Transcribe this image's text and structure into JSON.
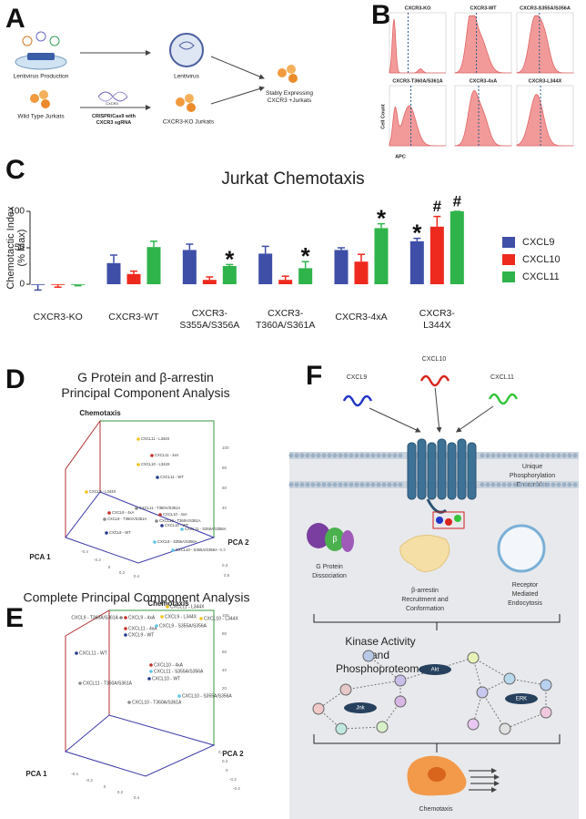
{
  "letters": [
    "A",
    "B",
    "C",
    "D",
    "E",
    "F"
  ],
  "panel_a": {
    "lentivirus_production": "Lentivirus Production",
    "wild_type": "Wild Type Jurkats",
    "lentivirus": "Lentivirus",
    "crispr": "CRISPR/Cas9 with\nCXCR3 sgRNA",
    "gene": "CXCR3",
    "knockout": "CXCR3-KO Jurkats",
    "stable": "Stably Expressing\nCXCR3 +Jurkats"
  },
  "panel_b": {
    "titles": [
      "CXCR3-KO",
      "CXCR3-WT",
      "CXCR3-S355A/S356A",
      "CXCR3-T360A/S361A",
      "CXCR3-4xA",
      "CXCR3-L344X"
    ],
    "y_label": "Cell Count",
    "x_label": "APC"
  },
  "chart_data": {
    "type": "bar",
    "title": "Jurkat Chemotaxis",
    "y_label": "Chemotactic Index\n(% Max)",
    "categories": [
      "CXCR3-KO",
      "CXCR3-WT",
      "CXCR3-\nS355A/S356A",
      "CXCR3-\nT360A/S361A",
      "CXCR3-4xA",
      "CXCR3-\nL344X"
    ],
    "series": [
      {
        "name": "CXCL9",
        "color": "#3f4fa8",
        "values": [
          -1,
          29,
          47,
          42,
          47,
          59
        ],
        "errors": [
          7,
          11,
          8,
          10,
          3,
          4
        ]
      },
      {
        "name": "CXCL10",
        "color": "#ee2a1e",
        "values": [
          -1,
          14,
          6,
          6,
          31,
          79
        ],
        "errors": [
          3,
          4,
          4,
          5,
          10,
          14
        ]
      },
      {
        "name": "CXCL11",
        "color": "#2fb44b",
        "values": [
          -1,
          51,
          25,
          22,
          77,
          100
        ],
        "errors": [
          1,
          8,
          2,
          9,
          6,
          0
        ]
      }
    ],
    "annotations": [
      {
        "text": "*",
        "category": "CXCR3-\nS355A/S356A",
        "series": "CXCL11"
      },
      {
        "text": "*",
        "category": "CXCR3-\nT360A/S361A",
        "series": "CXCL11"
      },
      {
        "text": "*",
        "category": "CXCR3-4xA",
        "series": "CXCL11"
      },
      {
        "text": "*",
        "category": "CXCR3-\nL344X",
        "series": "CXCL9"
      },
      {
        "text": "#",
        "category": "CXCR3-\nL344X",
        "series": "CXCL10"
      },
      {
        "text": "#",
        "category": "CXCR3-\nL344X",
        "series": "CXCL11"
      }
    ],
    "ylim": [
      -15,
      110
    ],
    "yticks": [
      0,
      50,
      100
    ],
    "grid": false,
    "legend": "right"
  },
  "panel_d": {
    "title": "G Protein and β-arrestin\nPrincipal Component Analysis",
    "axis_z": "Chemotaxis",
    "axis_x": "PCA 1",
    "axis_y": "PCA 2",
    "z_ticks": [
      "100",
      "80",
      "60",
      "40"
    ],
    "y_ticks": [
      "-0.3",
      "0.3",
      "0.6"
    ],
    "x_ticks": [
      "-0.4",
      "-0.2",
      "0",
      "0.2",
      "0.4"
    ],
    "points": [
      {
        "label": "CXCL11 - L344X",
        "color": "#f2c318"
      },
      {
        "label": "CXCL11 - 4xA",
        "color": "#c0302a"
      },
      {
        "label": "CXCL10 - L344X",
        "color": "#f2c318"
      },
      {
        "label": "CXCL11 - WT",
        "color": "#263a8c"
      },
      {
        "label": "CXCL9 - L344X",
        "color": "#f2c318"
      },
      {
        "label": "CXCL11 - T360A/S361A",
        "color": "#8a8a8a"
      },
      {
        "label": "CXCL9 - 4xA",
        "color": "#c0302a"
      },
      {
        "label": "CXCL10 - 4xA",
        "color": "#c0302a"
      },
      {
        "label": "CXCL9 - T360A/S361A",
        "color": "#8a8a8a"
      },
      {
        "label": "CXCL10 - T360A/S361A",
        "color": "#8a8a8a"
      },
      {
        "label": "CXCL10 - WT",
        "color": "#263a8c"
      },
      {
        "label": "CXCL9 - WT",
        "color": "#263a8c"
      },
      {
        "label": "CXCL11 - S355A/S356A",
        "color": "#5cc6e8"
      },
      {
        "label": "CXCL9 - S355A/S356A",
        "color": "#5cc6e8"
      },
      {
        "label": "CXCL10 - S355A/S356A",
        "color": "#5cc6e8"
      }
    ]
  },
  "panel_e": {
    "title": "Complete Principal Component Analysis",
    "axis_z": "Chemotaxis",
    "axis_x": "PCA 1",
    "axis_y": "PCA 2",
    "z_ticks": [
      "100",
      "80",
      "60",
      "40",
      "20"
    ],
    "y_ticks": [
      "0.4",
      "0.2",
      "0",
      "-0.2",
      "-0.4"
    ],
    "x_ticks": [
      "-0.4",
      "-0.2",
      "0",
      "0.2",
      "0.4"
    ],
    "points": [
      {
        "label": "CXCL11 - L344X",
        "color": "#f2c318"
      },
      {
        "label": "CXCL9 - T360A/S361A",
        "color": "#8a8a8a"
      },
      {
        "label": "CXCL9 - 4xA",
        "color": "#c0302a"
      },
      {
        "label": "CXCL9 - L344X",
        "color": "#f2c318"
      },
      {
        "label": "CXCL10 - L344X",
        "color": "#f2c318"
      },
      {
        "label": "CXCL11 - 4xA",
        "color": "#c0302a"
      },
      {
        "label": "CXCL9 - S355A/S356A",
        "color": "#5cc6e8"
      },
      {
        "label": "CXCL9 - WT",
        "color": "#263a8c"
      },
      {
        "label": "CXCL11 - WT",
        "color": "#263a8c"
      },
      {
        "label": "CXCL10 - 4xA",
        "color": "#c0302a"
      },
      {
        "label": "CXCL11 - S355A/S356A",
        "color": "#5cc6e8"
      },
      {
        "label": "CXCL10 - WT",
        "color": "#263a8c"
      },
      {
        "label": "CXCL11 - T360A/S361A",
        "color": "#8a8a8a"
      },
      {
        "label": "CXCL10 - S355A/S356A",
        "color": "#5cc6e8"
      },
      {
        "label": "CXCL10 - T360A/S361A",
        "color": "#8a8a8a"
      }
    ]
  },
  "panel_f": {
    "ligands": [
      {
        "name": "CXCL9",
        "color": "#2336c8"
      },
      {
        "name": "CXCL10",
        "color": "#d8261e"
      },
      {
        "name": "CXCL11",
        "color": "#35c43a"
      }
    ],
    "ensembles": "Unique\nPhosphorylation\nEnsembles",
    "beta": "β",
    "g_protein": "G Protein\nDissociation",
    "arrestin": "β-arrestin\nRecruitment and\nConformation",
    "endocytosis": "Receptor\nMediated\nEndocytosis",
    "kinase": "Kinase Activity\nand\nPhosphoproteome",
    "kinases": [
      "Akt",
      "Jnk",
      "ERK"
    ],
    "outcome": "Chemotaxis"
  }
}
